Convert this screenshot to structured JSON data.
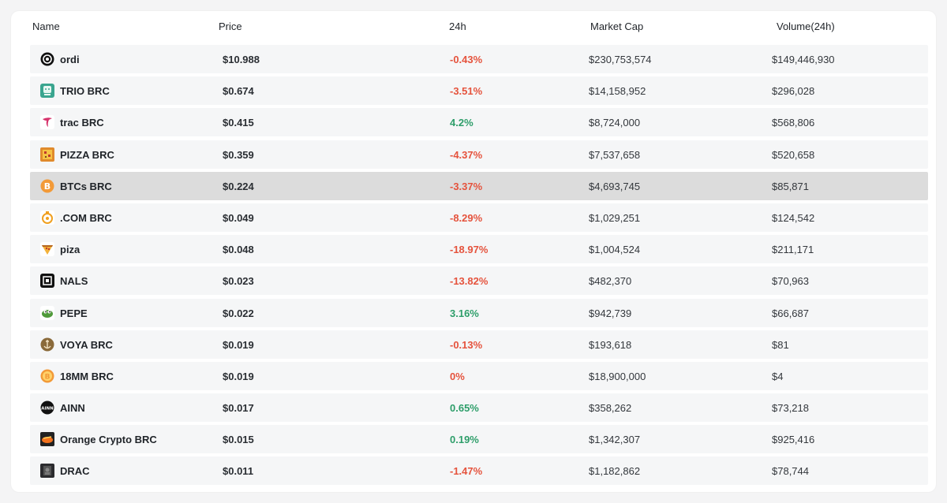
{
  "header": {
    "name": "Name",
    "price": "Price",
    "change": "24h",
    "market_cap": "Market Cap",
    "volume": "Volume(24h)"
  },
  "rows": [
    {
      "name": "ordi",
      "price": "$10.988",
      "change": "-0.43%",
      "trend": "down",
      "market_cap": "$230,753,574",
      "volume": "$149,446,930",
      "icon": "ordi-icon"
    },
    {
      "name": "TRIO BRC",
      "price": "$0.674",
      "change": "-3.51%",
      "trend": "down",
      "market_cap": "$14,158,952",
      "volume": "$296,028",
      "icon": "trio-icon"
    },
    {
      "name": "trac BRC",
      "price": "$0.415",
      "change": "4.2%",
      "trend": "up",
      "market_cap": "$8,724,000",
      "volume": "$568,806",
      "icon": "trac-icon"
    },
    {
      "name": "PIZZA BRC",
      "price": "$0.359",
      "change": "-4.37%",
      "trend": "down",
      "market_cap": "$7,537,658",
      "volume": "$520,658",
      "icon": "pizza-icon"
    },
    {
      "name": "BTCs BRC",
      "price": "$0.224",
      "change": "-3.37%",
      "trend": "down",
      "market_cap": "$4,693,745",
      "volume": "$85,871",
      "icon": "btcs-icon"
    },
    {
      "name": ".COM BRC",
      "price": "$0.049",
      "change": "-8.29%",
      "trend": "down",
      "market_cap": "$1,029,251",
      "volume": "$124,542",
      "icon": "dotcom-icon"
    },
    {
      "name": "piza",
      "price": "$0.048",
      "change": "-18.97%",
      "trend": "down",
      "market_cap": "$1,004,524",
      "volume": "$211,171",
      "icon": "piza-icon"
    },
    {
      "name": "NALS",
      "price": "$0.023",
      "change": "-13.82%",
      "trend": "down",
      "market_cap": "$482,370",
      "volume": "$70,963",
      "icon": "nals-icon"
    },
    {
      "name": "PEPE",
      "price": "$0.022",
      "change": "3.16%",
      "trend": "up",
      "market_cap": "$942,739",
      "volume": "$66,687",
      "icon": "pepe-icon"
    },
    {
      "name": "VOYA BRC",
      "price": "$0.019",
      "change": "-0.13%",
      "trend": "down",
      "market_cap": "$193,618",
      "volume": "$81",
      "icon": "voya-icon"
    },
    {
      "name": "18MM BRC",
      "price": "$0.019",
      "change": "0%",
      "trend": "down",
      "market_cap": "$18,900,000",
      "volume": "$4",
      "icon": "18mm-icon"
    },
    {
      "name": "AINN",
      "price": "$0.017",
      "change": "0.65%",
      "trend": "up",
      "market_cap": "$358,262",
      "volume": "$73,218",
      "icon": "ainn-icon"
    },
    {
      "name": "Orange Crypto BRC",
      "price": "$0.015",
      "change": "0.19%",
      "trend": "up",
      "market_cap": "$1,342,307",
      "volume": "$925,416",
      "icon": "orange-crypto-icon"
    },
    {
      "name": "DRAC",
      "price": "$0.011",
      "change": "-1.47%",
      "trend": "down",
      "market_cap": "$1,182,862",
      "volume": "$78,744",
      "icon": "drac-icon"
    }
  ],
  "hovered_row": "BTCs BRC",
  "colors": {
    "negative": "#e5533d",
    "positive": "#2e9e6a",
    "row_bg": "#f5f6f7",
    "row_hover_bg": "#dcdcdc"
  }
}
